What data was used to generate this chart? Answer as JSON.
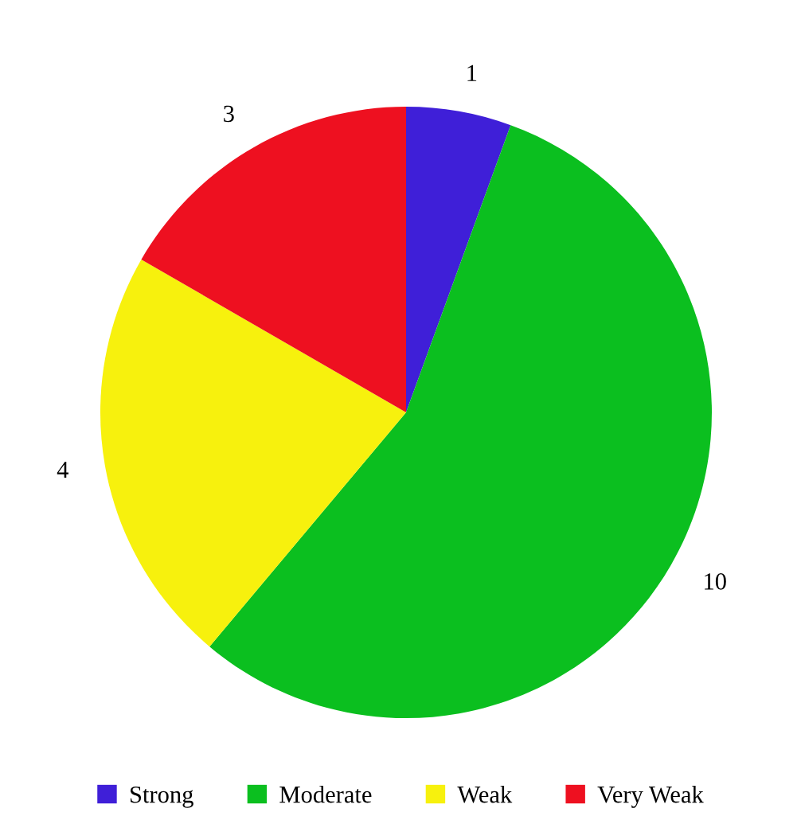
{
  "chart_data": {
    "type": "pie",
    "categories": [
      "Strong",
      "Moderate",
      "Weak",
      "Very Weak"
    ],
    "values": [
      1,
      10,
      4,
      3
    ],
    "colors": [
      "#3f1fd8",
      "#0bbf1f",
      "#f7f10d",
      "#ee1020"
    ],
    "data_labels": true,
    "legend": "bottom"
  }
}
